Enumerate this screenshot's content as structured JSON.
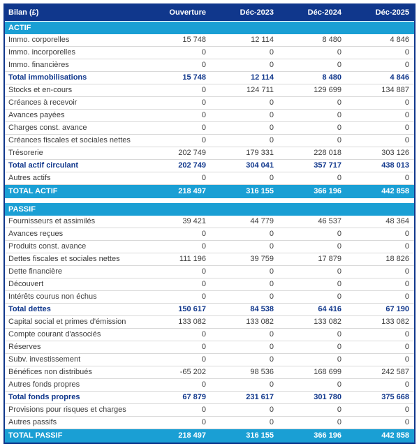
{
  "colors": {
    "navy": "#10378c",
    "cyan": "#1a9fd4",
    "text": "#3d3d3d",
    "rowline": "#d9d9d9"
  },
  "chart_data": {
    "type": "table",
    "title": "Bilan (£)",
    "header": {
      "label": "Bilan (£)",
      "columns": [
        "Ouverture",
        "Déc-2023",
        "Déc-2024",
        "Déc-2025"
      ]
    },
    "sections": [
      {
        "title": "ACTIF",
        "rows": [
          {
            "label": "Immo. corporelles",
            "bold": false,
            "values": [
              "15 748",
              "12 114",
              "8 480",
              "4 846"
            ]
          },
          {
            "label": "Immo. incorporelles",
            "bold": false,
            "values": [
              "0",
              "0",
              "0",
              "0"
            ]
          },
          {
            "label": "Immo. financières",
            "bold": false,
            "values": [
              "0",
              "0",
              "0",
              "0"
            ]
          },
          {
            "label": "Total immobilisations",
            "bold": true,
            "values": [
              "15 748",
              "12 114",
              "8 480",
              "4 846"
            ]
          },
          {
            "label": "Stocks et en-cours",
            "bold": false,
            "values": [
              "0",
              "124 711",
              "129 699",
              "134 887"
            ]
          },
          {
            "label": "Créances à recevoir",
            "bold": false,
            "values": [
              "0",
              "0",
              "0",
              "0"
            ]
          },
          {
            "label": "Avances payées",
            "bold": false,
            "values": [
              "0",
              "0",
              "0",
              "0"
            ]
          },
          {
            "label": "Charges const. avance",
            "bold": false,
            "values": [
              "0",
              "0",
              "0",
              "0"
            ]
          },
          {
            "label": "Créances fiscales et sociales nettes",
            "bold": false,
            "values": [
              "0",
              "0",
              "0",
              "0"
            ]
          },
          {
            "label": "Trésorerie",
            "bold": false,
            "values": [
              "202 749",
              "179 331",
              "228 018",
              "303 126"
            ]
          },
          {
            "label": "Total actif circulant",
            "bold": true,
            "values": [
              "202 749",
              "304 041",
              "357 717",
              "438 013"
            ]
          },
          {
            "label": "Autres actifs",
            "bold": false,
            "values": [
              "0",
              "0",
              "0",
              "0"
            ]
          }
        ],
        "total": {
          "label": "TOTAL ACTIF",
          "values": [
            "218 497",
            "316 155",
            "366 196",
            "442 858"
          ]
        }
      },
      {
        "title": "PASSIF",
        "rows": [
          {
            "label": "Fournisseurs et assimilés",
            "bold": false,
            "values": [
              "39 421",
              "44 779",
              "46 537",
              "48 364"
            ]
          },
          {
            "label": "Avances reçues",
            "bold": false,
            "values": [
              "0",
              "0",
              "0",
              "0"
            ]
          },
          {
            "label": "Produits const. avance",
            "bold": false,
            "values": [
              "0",
              "0",
              "0",
              "0"
            ]
          },
          {
            "label": "Dettes fiscales et sociales nettes",
            "bold": false,
            "values": [
              "111 196",
              "39 759",
              "17 879",
              "18 826"
            ]
          },
          {
            "label": "Dette financière",
            "bold": false,
            "values": [
              "0",
              "0",
              "0",
              "0"
            ]
          },
          {
            "label": "Découvert",
            "bold": false,
            "values": [
              "0",
              "0",
              "0",
              "0"
            ]
          },
          {
            "label": "Intérêts courus non échus",
            "bold": false,
            "values": [
              "0",
              "0",
              "0",
              "0"
            ]
          },
          {
            "label": "Total dettes",
            "bold": true,
            "values": [
              "150 617",
              "84 538",
              "64 416",
              "67 190"
            ]
          },
          {
            "label": "Capital social et primes d'émission",
            "bold": false,
            "values": [
              "133 082",
              "133 082",
              "133 082",
              "133 082"
            ]
          },
          {
            "label": "Compte courant d'associés",
            "bold": false,
            "values": [
              "0",
              "0",
              "0",
              "0"
            ]
          },
          {
            "label": "Réserves",
            "bold": false,
            "values": [
              "0",
              "0",
              "0",
              "0"
            ]
          },
          {
            "label": "Subv. investissement",
            "bold": false,
            "values": [
              "0",
              "0",
              "0",
              "0"
            ]
          },
          {
            "label": "Bénéfices non distribués",
            "bold": false,
            "values": [
              "-65 202",
              "98 536",
              "168 699",
              "242 587"
            ]
          },
          {
            "label": "Autres fonds propres",
            "bold": false,
            "values": [
              "0",
              "0",
              "0",
              "0"
            ]
          },
          {
            "label": "Total fonds propres",
            "bold": true,
            "values": [
              "67 879",
              "231 617",
              "301 780",
              "375 668"
            ]
          },
          {
            "label": "Provisions pour risques et charges",
            "bold": false,
            "values": [
              "0",
              "0",
              "0",
              "0"
            ]
          },
          {
            "label": "Autres passifs",
            "bold": false,
            "values": [
              "0",
              "0",
              "0",
              "0"
            ]
          }
        ],
        "total": {
          "label": "TOTAL PASSIF",
          "values": [
            "218 497",
            "316 155",
            "366 196",
            "442 858"
          ]
        }
      }
    ]
  }
}
